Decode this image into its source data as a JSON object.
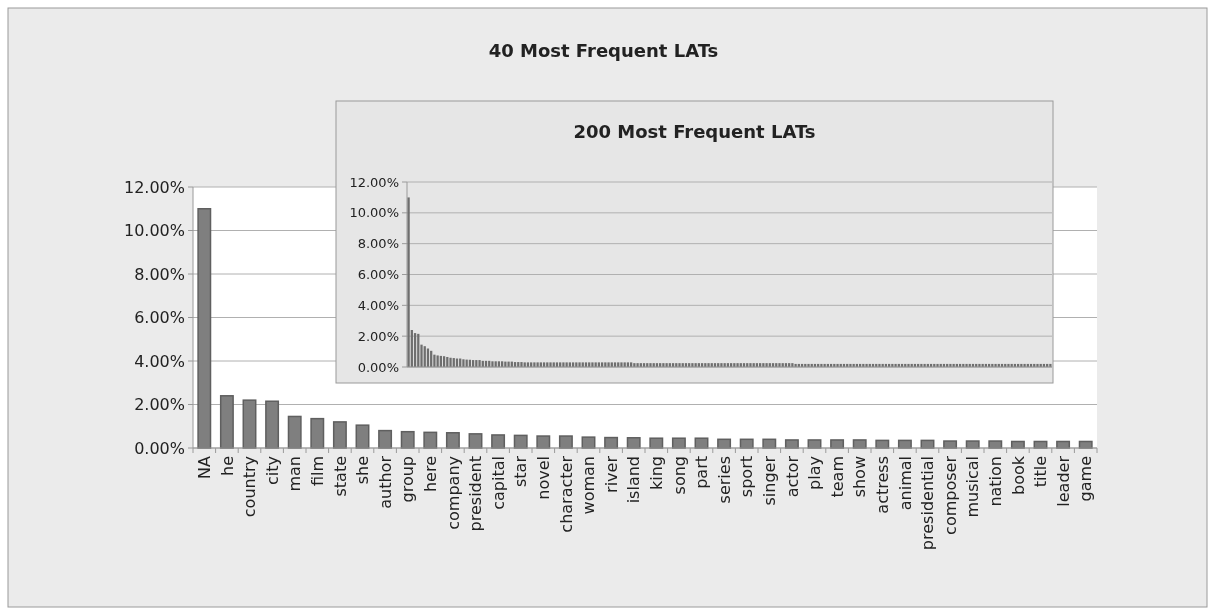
{
  "chart_data": [
    {
      "type": "bar",
      "title": "40 Most Frequent LATs",
      "categories": [
        "NA",
        "he",
        "country",
        "city",
        "man",
        "film",
        "state",
        "she",
        "author",
        "group",
        "here",
        "company",
        "president",
        "capital",
        "star",
        "novel",
        "character",
        "woman",
        "river",
        "island",
        "king",
        "song",
        "part",
        "series",
        "sport",
        "singer",
        "actor",
        "play",
        "team",
        "show",
        "actress",
        "animal",
        "presidential",
        "composer",
        "musical",
        "nation",
        "book",
        "title",
        "leader",
        "game"
      ],
      "values": [
        11.0,
        2.4,
        2.2,
        2.15,
        1.45,
        1.35,
        1.2,
        1.05,
        0.8,
        0.75,
        0.72,
        0.7,
        0.65,
        0.6,
        0.58,
        0.55,
        0.55,
        0.5,
        0.48,
        0.47,
        0.45,
        0.45,
        0.45,
        0.4,
        0.4,
        0.4,
        0.37,
        0.37,
        0.37,
        0.37,
        0.35,
        0.35,
        0.35,
        0.32,
        0.32,
        0.32,
        0.3,
        0.3,
        0.3,
        0.3
      ],
      "color": "#7f7f7f",
      "ylim": [
        0,
        12
      ],
      "yticks": [
        {
          "value": 0,
          "label": "0.00%"
        },
        {
          "value": 2,
          "label": "2.00%"
        },
        {
          "value": 4,
          "label": "4.00%"
        },
        {
          "value": 6,
          "label": "6.00%"
        },
        {
          "value": 8,
          "label": "8.00%"
        },
        {
          "value": 10,
          "label": "10.00%"
        },
        {
          "value": 12,
          "label": "12.00%"
        }
      ],
      "grid": "y"
    },
    {
      "type": "bar",
      "title": "200 Most Frequent LATs",
      "categories": [
        null,
        null,
        null,
        null,
        null,
        null,
        null,
        null,
        null,
        null,
        null,
        null,
        null,
        null,
        null,
        null,
        null,
        null,
        null,
        null,
        null,
        null,
        null,
        null,
        null,
        null,
        null,
        null,
        null,
        null,
        null,
        null,
        null,
        null,
        null,
        null,
        null,
        null,
        null,
        null,
        null,
        null,
        null,
        null,
        null,
        null,
        null,
        null,
        null,
        null,
        null,
        null,
        null,
        null,
        null,
        null,
        null,
        null,
        null,
        null,
        null,
        null,
        null,
        null,
        null,
        null,
        null,
        null,
        null,
        null,
        null,
        null,
        null,
        null,
        null,
        null,
        null,
        null,
        null,
        null,
        null,
        null,
        null,
        null,
        null,
        null,
        null,
        null,
        null,
        null,
        null,
        null,
        null,
        null,
        null,
        null,
        null,
        null,
        null,
        null,
        null,
        null,
        null,
        null,
        null,
        null,
        null,
        null,
        null,
        null,
        null,
        null,
        null,
        null,
        null,
        null,
        null,
        null,
        null,
        null,
        null,
        null,
        null,
        null,
        null,
        null,
        null,
        null,
        null,
        null,
        null,
        null,
        null,
        null,
        null,
        null,
        null,
        null,
        null,
        null,
        null,
        null,
        null,
        null,
        null,
        null,
        null,
        null,
        null,
        null,
        null,
        null,
        null,
        null,
        null,
        null,
        null,
        null,
        null,
        null,
        null,
        null,
        null,
        null,
        null,
        null,
        null,
        null,
        null,
        null,
        null,
        null,
        null,
        null,
        null,
        null,
        null,
        null,
        null,
        null,
        null,
        null,
        null,
        null,
        null,
        null,
        null,
        null,
        null,
        null,
        null,
        null,
        null,
        null,
        null,
        null,
        null,
        null,
        null,
        null
      ],
      "values": [
        11.0,
        2.4,
        2.2,
        2.15,
        1.45,
        1.35,
        1.2,
        1.05,
        0.8,
        0.75,
        0.72,
        0.7,
        0.65,
        0.6,
        0.58,
        0.55,
        0.55,
        0.5,
        0.48,
        0.47,
        0.45,
        0.45,
        0.45,
        0.4,
        0.4,
        0.4,
        0.37,
        0.37,
        0.37,
        0.37,
        0.35,
        0.35,
        0.35,
        0.32,
        0.32,
        0.32,
        0.3,
        0.3,
        0.3,
        0.3,
        0.3,
        0.3,
        0.3,
        0.3,
        0.3,
        0.3,
        0.3,
        0.3,
        0.3,
        0.3,
        0.3,
        0.3,
        0.3,
        0.3,
        0.3,
        0.3,
        0.3,
        0.3,
        0.3,
        0.3,
        0.3,
        0.3,
        0.3,
        0.3,
        0.3,
        0.3,
        0.3,
        0.3,
        0.3,
        0.3,
        0.25,
        0.25,
        0.25,
        0.25,
        0.25,
        0.25,
        0.25,
        0.25,
        0.25,
        0.25,
        0.25,
        0.25,
        0.25,
        0.25,
        0.25,
        0.25,
        0.25,
        0.25,
        0.25,
        0.25,
        0.25,
        0.25,
        0.25,
        0.25,
        0.25,
        0.25,
        0.25,
        0.25,
        0.25,
        0.25,
        0.25,
        0.25,
        0.25,
        0.25,
        0.25,
        0.25,
        0.25,
        0.25,
        0.25,
        0.25,
        0.25,
        0.25,
        0.25,
        0.25,
        0.25,
        0.25,
        0.25,
        0.25,
        0.25,
        0.25,
        0.2,
        0.2,
        0.2,
        0.2,
        0.2,
        0.2,
        0.2,
        0.2,
        0.2,
        0.2,
        0.2,
        0.2,
        0.2,
        0.2,
        0.2,
        0.2,
        0.2,
        0.2,
        0.2,
        0.2,
        0.2,
        0.2,
        0.2,
        0.2,
        0.2,
        0.2,
        0.2,
        0.2,
        0.2,
        0.2,
        0.2,
        0.2,
        0.2,
        0.2,
        0.2,
        0.2,
        0.2,
        0.2,
        0.2,
        0.2,
        0.2,
        0.2,
        0.2,
        0.2,
        0.2,
        0.2,
        0.2,
        0.2,
        0.2,
        0.2,
        0.2,
        0.2,
        0.2,
        0.2,
        0.2,
        0.2,
        0.2,
        0.2,
        0.2,
        0.2,
        0.2,
        0.2,
        0.2,
        0.2,
        0.2,
        0.2,
        0.2,
        0.2,
        0.2,
        0.2,
        0.2,
        0.2,
        0.2,
        0.2,
        0.2,
        0.2,
        0.2,
        0.2,
        0.2,
        0.2
      ],
      "color": "#6e6e6e",
      "ylim": [
        0,
        12
      ],
      "yticks": [
        {
          "value": 0,
          "label": "0.00%"
        },
        {
          "value": 2,
          "label": "2.00%"
        },
        {
          "value": 4,
          "label": "4.00%"
        },
        {
          "value": 6,
          "label": "6.00%"
        },
        {
          "value": 8,
          "label": "8.00%"
        },
        {
          "value": 10,
          "label": "10.00%"
        },
        {
          "value": 12,
          "label": "12.00%"
        }
      ],
      "grid": "y"
    }
  ]
}
